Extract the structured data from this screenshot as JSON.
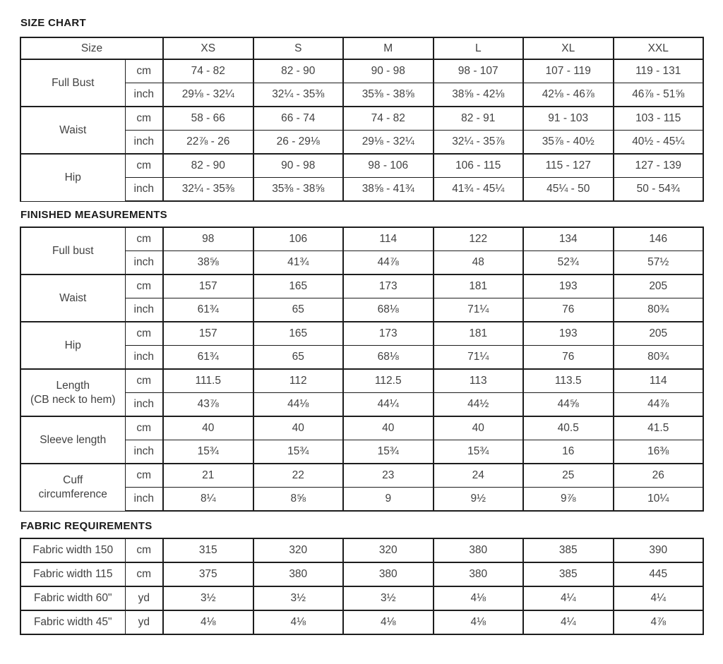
{
  "size_chart": {
    "title": "SIZE CHART",
    "corner_label": "Size",
    "sizes": [
      "XS",
      "S",
      "M",
      "L",
      "XL",
      "XXL"
    ],
    "groups": [
      {
        "label": "Full Bust",
        "rows": [
          {
            "unit": "cm",
            "values": [
              "74 - 82",
              "82 - 90",
              "90 - 98",
              "98 - 107",
              "107 - 119",
              "119 - 131"
            ]
          },
          {
            "unit": "inch",
            "values": [
              "29⅛ - 32¼",
              "32¼ - 35⅜",
              "35⅜ - 38⅝",
              "38⅝ - 42⅛",
              "42⅛ - 46⅞",
              "46⅞ - 51⅝"
            ]
          }
        ]
      },
      {
        "label": "Waist",
        "rows": [
          {
            "unit": "cm",
            "values": [
              "58 - 66",
              "66 - 74",
              "74 - 82",
              "82 - 91",
              "91 - 103",
              "103 - 115"
            ]
          },
          {
            "unit": "inch",
            "values": [
              "22⅞ - 26",
              "26 - 29⅛",
              "29⅛ - 32¼",
              "32¼ - 35⅞",
              "35⅞ - 40½",
              "40½ - 45¼"
            ]
          }
        ]
      },
      {
        "label": "Hip",
        "rows": [
          {
            "unit": "cm",
            "values": [
              "82 - 90",
              "90 - 98",
              "98 - 106",
              "106 - 115",
              "115 - 127",
              "127 - 139"
            ]
          },
          {
            "unit": "inch",
            "values": [
              "32¼ - 35⅜",
              "35⅜ - 38⅝",
              "38⅝ - 41¾",
              "41¾ - 45¼",
              "45¼ - 50",
              "50 - 54¾"
            ]
          }
        ]
      }
    ]
  },
  "finished_measurements": {
    "title": "FINISHED MEASUREMENTS",
    "groups": [
      {
        "label": "Full bust",
        "rows": [
          {
            "unit": "cm",
            "values": [
              "98",
              "106",
              "114",
              "122",
              "134",
              "146"
            ]
          },
          {
            "unit": "inch",
            "values": [
              "38⅝",
              "41¾",
              "44⅞",
              "48",
              "52¾",
              "57½"
            ]
          }
        ]
      },
      {
        "label": "Waist",
        "rows": [
          {
            "unit": "cm",
            "values": [
              "157",
              "165",
              "173",
              "181",
              "193",
              "205"
            ]
          },
          {
            "unit": "inch",
            "values": [
              "61¾",
              "65",
              "68⅛",
              "71¼",
              "76",
              "80¾"
            ]
          }
        ]
      },
      {
        "label": "Hip",
        "rows": [
          {
            "unit": "cm",
            "values": [
              "157",
              "165",
              "173",
              "181",
              "193",
              "205"
            ]
          },
          {
            "unit": "inch",
            "values": [
              "61¾",
              "65",
              "68⅛",
              "71¼",
              "76",
              "80¾"
            ]
          }
        ]
      },
      {
        "label": "Length\n(CB neck to hem)",
        "rows": [
          {
            "unit": "cm",
            "values": [
              "111.5",
              "112",
              "112.5",
              "113",
              "113.5",
              "114"
            ]
          },
          {
            "unit": "inch",
            "values": [
              "43⅞",
              "44⅛",
              "44¼",
              "44½",
              "44⅝",
              "44⅞"
            ]
          }
        ]
      },
      {
        "label": "Sleeve length",
        "rows": [
          {
            "unit": "cm",
            "values": [
              "40",
              "40",
              "40",
              "40",
              "40.5",
              "41.5"
            ]
          },
          {
            "unit": "inch",
            "values": [
              "15¾",
              "15¾",
              "15¾",
              "15¾",
              "16",
              "16⅜"
            ]
          }
        ]
      },
      {
        "label": "Cuff\ncircumference",
        "rows": [
          {
            "unit": "cm",
            "values": [
              "21",
              "22",
              "23",
              "24",
              "25",
              "26"
            ]
          },
          {
            "unit": "inch",
            "values": [
              "8¼",
              "8⅝",
              "9",
              "9½",
              "9⅞",
              "10¼"
            ]
          }
        ]
      }
    ]
  },
  "fabric_requirements": {
    "title": "FABRIC REQUIREMENTS",
    "rows": [
      {
        "label": "Fabric width 150",
        "unit": "cm",
        "values": [
          "315",
          "320",
          "320",
          "380",
          "385",
          "390"
        ]
      },
      {
        "label": "Fabric width 115",
        "unit": "cm",
        "values": [
          "375",
          "380",
          "380",
          "380",
          "385",
          "445"
        ]
      },
      {
        "label": "Fabric width 60\"",
        "unit": "yd",
        "values": [
          "3½",
          "3½",
          "3½",
          "4⅛",
          "4¼",
          "4¼"
        ]
      },
      {
        "label": "Fabric width 45\"",
        "unit": "yd",
        "values": [
          "4⅛",
          "4⅛",
          "4⅛",
          "4⅛",
          "4¼",
          "4⅞"
        ]
      }
    ]
  }
}
